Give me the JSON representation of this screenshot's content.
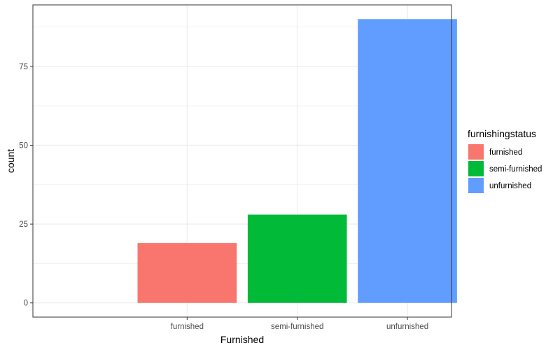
{
  "chart_data": {
    "type": "bar",
    "categories": [
      "furnished",
      "semi-furnished",
      "unfurnished"
    ],
    "values": [
      19,
      28,
      90
    ],
    "colors": [
      "#F8766D",
      "#00BA38",
      "#619CFF"
    ],
    "xlabel": "Furnished",
    "ylabel": "count",
    "ylim": [
      -4.5,
      94.5
    ],
    "yticks": [
      0,
      25,
      50,
      75
    ],
    "grid": true,
    "legend": {
      "title": "furnishingstatus",
      "position": "right",
      "entries": [
        "furnished",
        "semi-furnished",
        "unfurnished"
      ]
    }
  }
}
